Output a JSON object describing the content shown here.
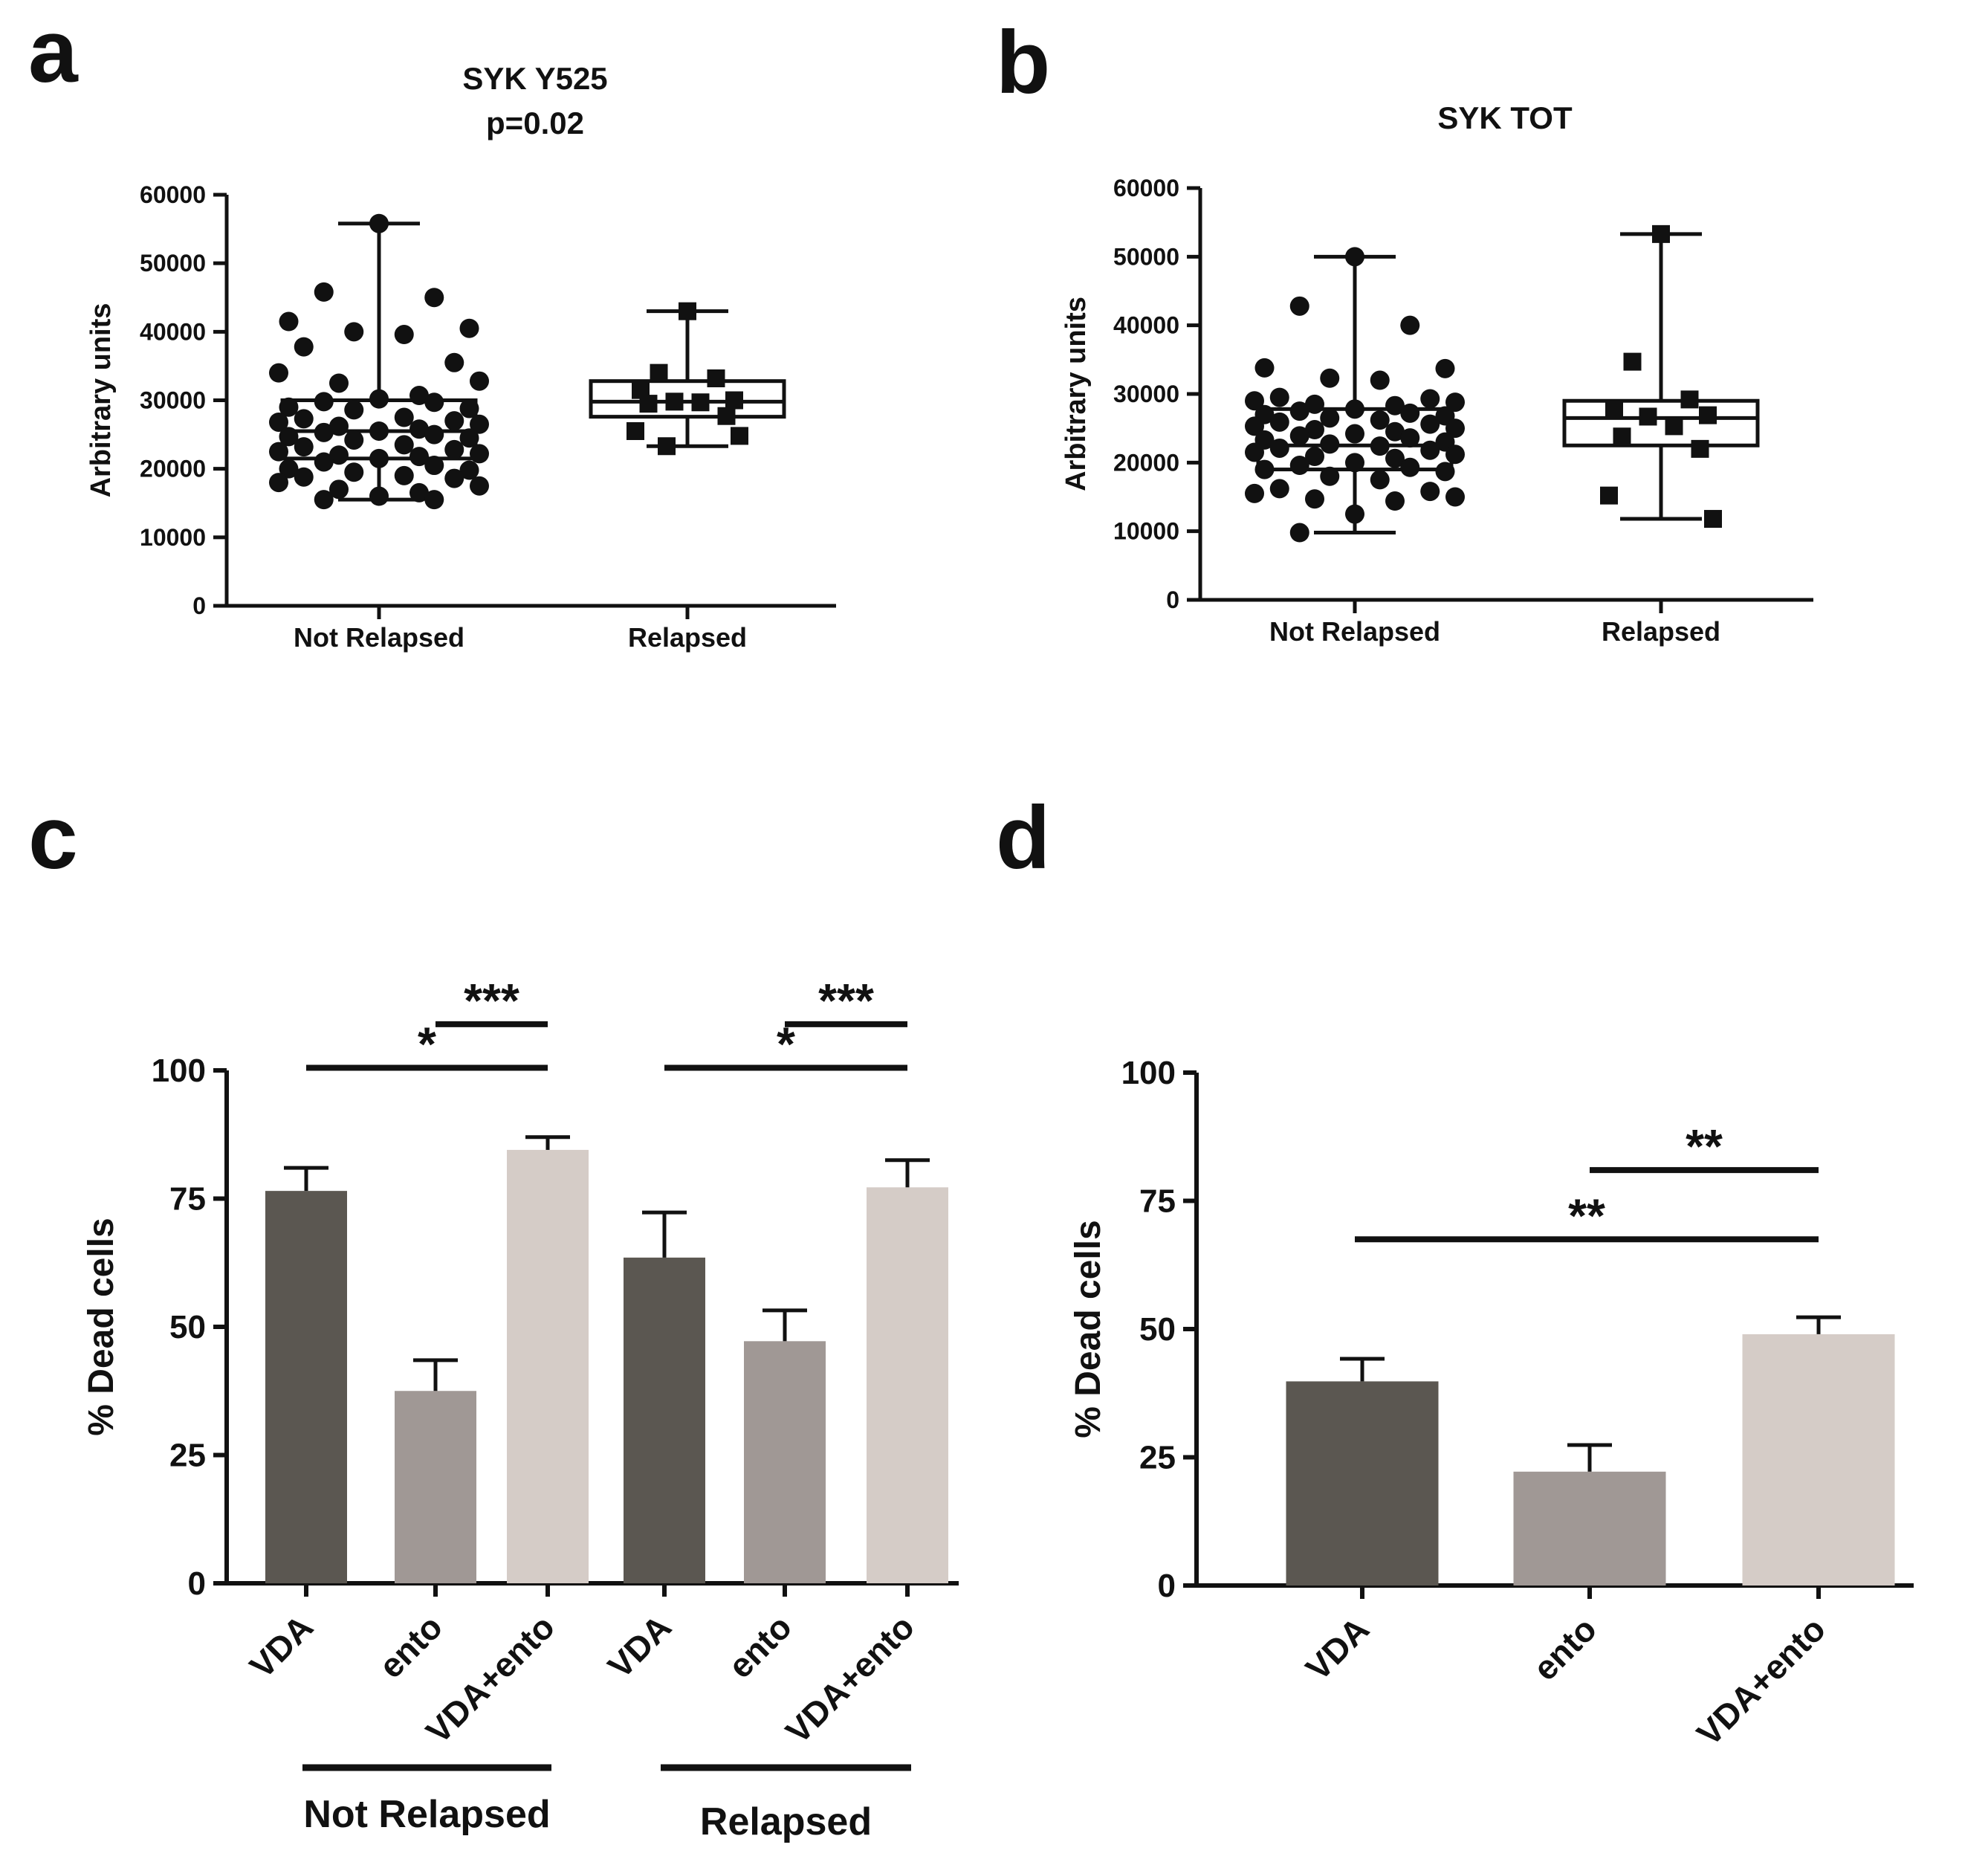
{
  "chart_data": [
    {
      "panel": "a",
      "type": "scatter",
      "title": "SYK Y525",
      "subtitle": "p=0.02",
      "ylabel": "Arbitrary units",
      "ylim": [
        0,
        60000
      ],
      "yticks": [
        0,
        10000,
        20000,
        30000,
        40000,
        50000,
        60000
      ],
      "categories": [
        "Not Relapsed",
        "Relapsed"
      ],
      "series": [
        {
          "name": "Not Relapsed",
          "marker": "circle",
          "box": {
            "min": 15500,
            "q1": 21500,
            "median": 25500,
            "q3": 30000,
            "max": 55800
          },
          "values": [
            55800,
            45800,
            45000,
            41500,
            40500,
            40000,
            39600,
            37800,
            35500,
            34000,
            32800,
            32500,
            30700,
            30200,
            29800,
            29700,
            29000,
            28800,
            28600,
            27500,
            27300,
            27000,
            26800,
            26500,
            26200,
            25800,
            25500,
            25300,
            25000,
            24700,
            24500,
            24200,
            23500,
            23200,
            22800,
            22500,
            22200,
            22000,
            21800,
            21500,
            21000,
            20500,
            20000,
            19800,
            19500,
            19000,
            18800,
            18600,
            18000,
            17500,
            17000,
            16500,
            16000,
            15500,
            15500
          ]
        },
        {
          "name": "Relapsed",
          "marker": "square",
          "box": {
            "min": 23300,
            "q1": 27600,
            "median": 29800,
            "q3": 32800,
            "max": 43000
          },
          "values": [
            43000,
            34000,
            33200,
            31500,
            30000,
            29800,
            29700,
            29500,
            27700,
            25500,
            24800,
            23300
          ]
        }
      ]
    },
    {
      "panel": "b",
      "type": "scatter",
      "title": "SYK TOT",
      "ylabel": "Arbitrary units",
      "ylim": [
        0,
        60000
      ],
      "yticks": [
        0,
        10000,
        20000,
        30000,
        40000,
        50000,
        60000
      ],
      "categories": [
        "Not Relapsed",
        "Relapsed"
      ],
      "series": [
        {
          "name": "Not Relapsed",
          "marker": "circle",
          "box": {
            "min": 9800,
            "q1": 19000,
            "median": 22500,
            "q3": 27800,
            "max": 50000
          },
          "values": [
            50000,
            42800,
            40000,
            33800,
            33700,
            32300,
            32000,
            29500,
            29300,
            29000,
            28800,
            28500,
            28300,
            27800,
            27500,
            27200,
            27000,
            26800,
            26500,
            26200,
            25900,
            25600,
            25300,
            25000,
            24800,
            24500,
            24200,
            23900,
            23600,
            23300,
            23000,
            22700,
            22400,
            22100,
            21800,
            21500,
            21200,
            20900,
            20600,
            20000,
            19600,
            19300,
            19000,
            18700,
            18000,
            17500,
            16200,
            15800,
            15500,
            15000,
            14700,
            14400,
            12500,
            9800
          ]
        },
        {
          "name": "Relapsed",
          "marker": "square",
          "box": {
            "min": 11800,
            "q1": 22500,
            "median": 26500,
            "q3": 29000,
            "max": 53300
          },
          "values": [
            53300,
            34700,
            29200,
            27700,
            26900,
            26700,
            25300,
            23800,
            22000,
            15200,
            11800
          ]
        }
      ]
    },
    {
      "panel": "c",
      "type": "bar",
      "ylabel": "% Dead cells",
      "ylim": [
        0,
        100
      ],
      "yticks": [
        0,
        25,
        50,
        75,
        100
      ],
      "categories": [
        "VDA",
        "ento",
        "VDA+ento",
        "VDA",
        "ento",
        "VDA+ento"
      ],
      "values": [
        76.5,
        37.5,
        84.5,
        63.5,
        47.2,
        77.2
      ],
      "errors": [
        4.5,
        6,
        2.5,
        8.8,
        6,
        5.3
      ],
      "colors": [
        "#5b5751",
        "#a09895",
        "#d5ccc7",
        "#5b5751",
        "#a09895",
        "#d5ccc7"
      ],
      "groups": [
        {
          "label": "Not Relapsed",
          "from": 0,
          "to": 2
        },
        {
          "label": "Relapsed",
          "from": 3,
          "to": 5
        }
      ],
      "significance": [
        {
          "from": 1,
          "to": 2,
          "y": 109,
          "label": "***"
        },
        {
          "from": 0,
          "to": 2,
          "y": 100.5,
          "label": "*"
        },
        {
          "from": 4,
          "to": 5,
          "y": 109,
          "label": "***"
        },
        {
          "from": 3,
          "to": 5,
          "y": 100.5,
          "label": "*"
        }
      ]
    },
    {
      "panel": "d",
      "type": "bar",
      "ylabel": "% Dead cells",
      "ylim": [
        0,
        100
      ],
      "yticks": [
        0,
        25,
        50,
        75,
        100
      ],
      "categories": [
        "VDA",
        "ento",
        "VDA+ento"
      ],
      "values": [
        39.8,
        22.2,
        49
      ],
      "errors": [
        4.4,
        5.2,
        3.3
      ],
      "colors": [
        "#5b5751",
        "#a09895",
        "#d5ccc7"
      ],
      "significance": [
        {
          "from": 1,
          "to": 2,
          "y": 81,
          "label": "**"
        },
        {
          "from": 0,
          "to": 2,
          "y": 67.5,
          "label": "**"
        }
      ]
    }
  ]
}
